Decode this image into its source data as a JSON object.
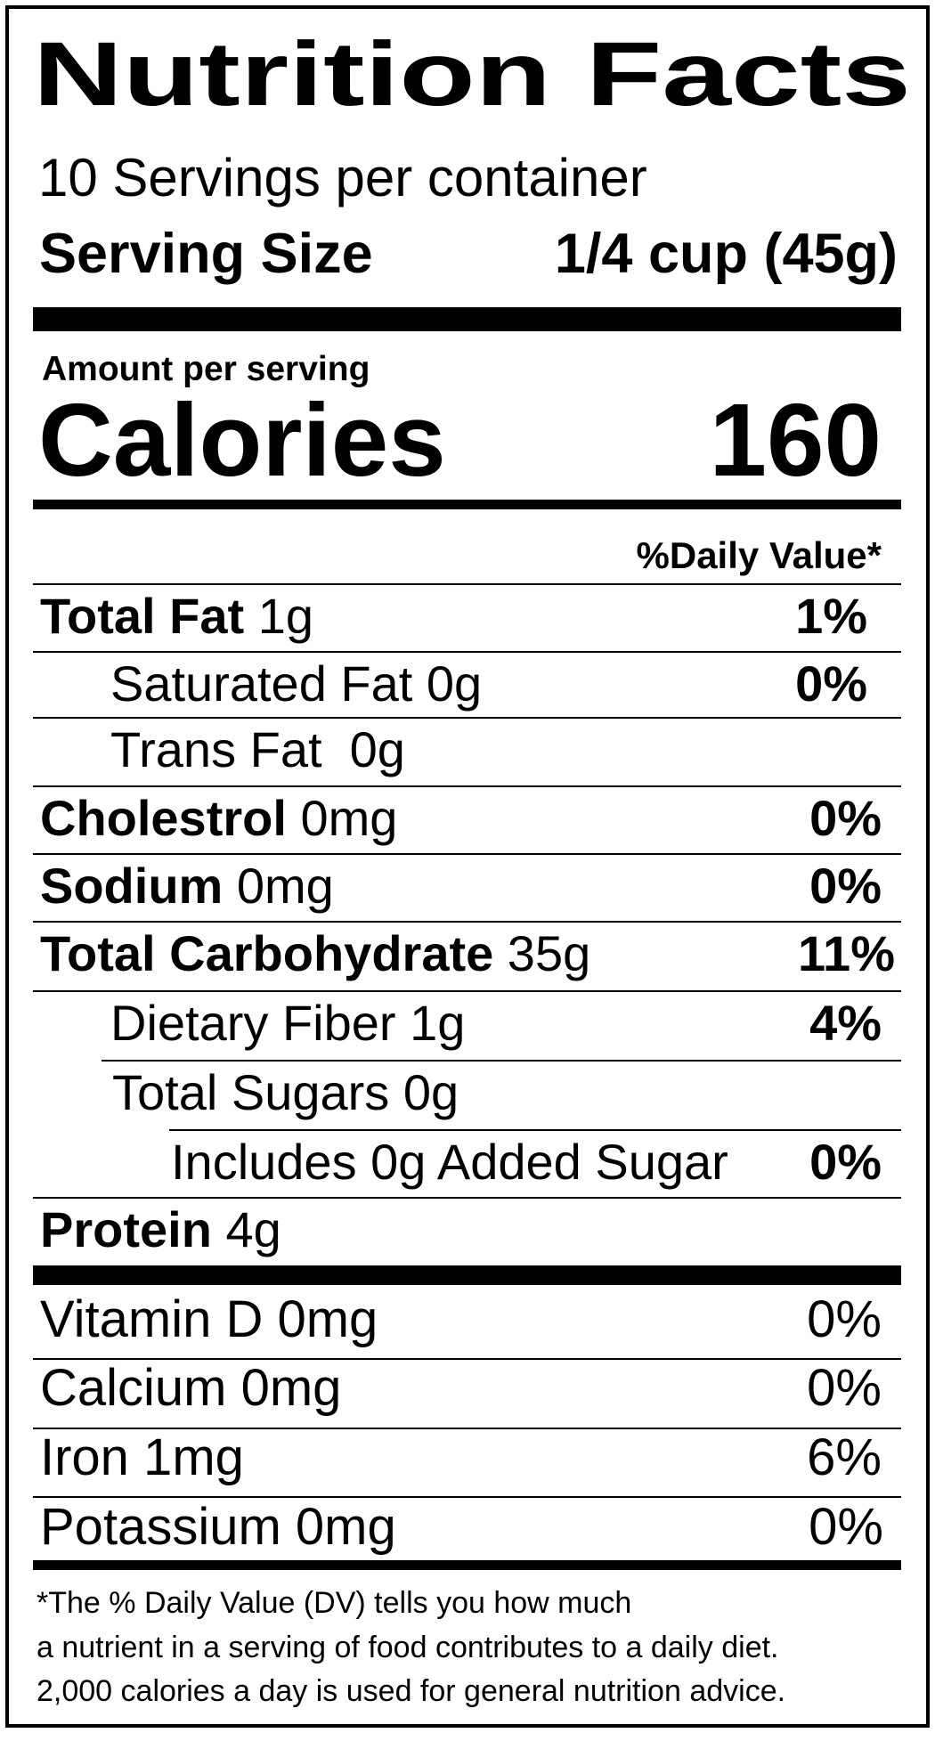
{
  "title": "Nutrition Facts",
  "servings_per_container": "10 Servings per container",
  "serving_size": {
    "label": "Serving Size",
    "value": "1/4 cup (45g)"
  },
  "amount_per_serving": "Amount per serving",
  "calories": {
    "label": "Calories",
    "value": "160"
  },
  "daily_value_header": "%Daily Value*",
  "nutrients": [
    {
      "name": "Total Fat",
      "amount": " 1g",
      "dv": "1%"
    },
    {
      "name": "",
      "amount": "Saturated Fat 0g",
      "dv": "0%"
    },
    {
      "name": "",
      "amount": "Trans Fat  0g",
      "dv": ""
    },
    {
      "name": "Cholestrol",
      "amount": " 0mg",
      "dv": "0%"
    },
    {
      "name": "Sodium",
      "amount": " 0mg",
      "dv": "0%"
    },
    {
      "name": "Total Carbohydrate",
      "amount": " 35g",
      "dv": "11%"
    },
    {
      "name": "",
      "amount": "Dietary Fiber 1g",
      "dv": "4%"
    },
    {
      "name": "",
      "amount": "Total Sugars 0g",
      "dv": ""
    },
    {
      "name": "",
      "amount": "Includes 0g Added Sugar",
      "dv": "0%"
    },
    {
      "name": "Protein",
      "amount": " 4g",
      "dv": ""
    }
  ],
  "vitamins": [
    {
      "label": "Vitamin D 0mg",
      "dv": "0%"
    },
    {
      "label": "Calcium 0mg",
      "dv": "0%"
    },
    {
      "label": "Iron 1mg",
      "dv": "6%"
    },
    {
      "label": "Potassium 0mg",
      "dv": "0%"
    }
  ],
  "footnote": [
    "*The % Daily Value (DV) tells you how much",
    "a nutrient in a serving of food contributes to a daily diet.",
    "2,000 calories a day is used for general nutrition advice."
  ]
}
